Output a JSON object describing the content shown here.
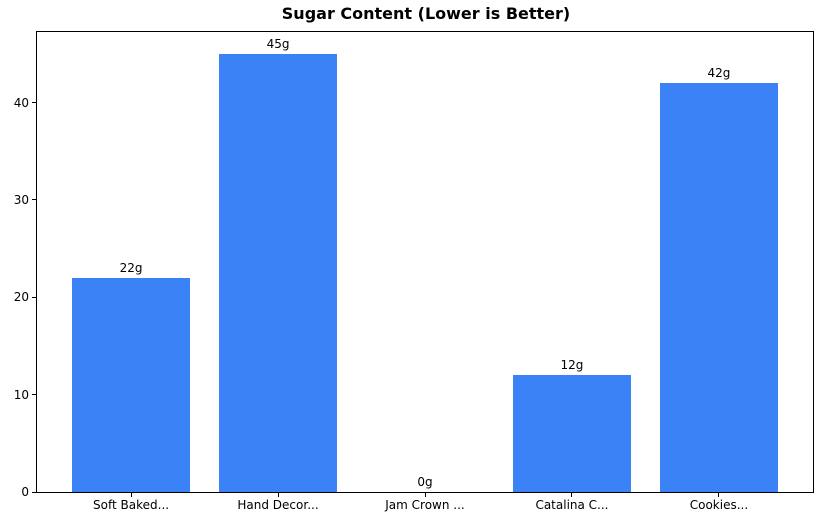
{
  "chart_data": {
    "type": "bar",
    "title": "Sugar Content (Lower is Better)",
    "categories": [
      "Soft Baked...",
      "Hand Decor...",
      "Jam Crown ...",
      "Catalina C...",
      "Cookies..."
    ],
    "values": [
      22,
      45,
      0,
      12,
      42
    ],
    "bar_labels": [
      "22g",
      "45g",
      "0g",
      "12g",
      "42g"
    ],
    "xlabel": "",
    "ylabel": "",
    "yticks": [
      0,
      10,
      20,
      30,
      40
    ],
    "ytick_labels": [
      "0",
      "10",
      "20",
      "30",
      "40"
    ],
    "ylim": [
      0,
      47.25
    ],
    "xlim": [
      -0.64,
      4.64
    ],
    "bar_width_units": 0.8,
    "bar_color": "#3b82f6",
    "axis_color": "#000000",
    "text_color": "#000000",
    "background_color": "#ffffff",
    "grid": false,
    "legend": null
  }
}
